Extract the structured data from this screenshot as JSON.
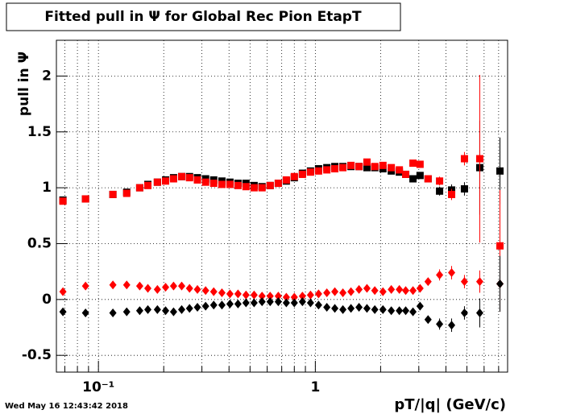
{
  "chart_data": {
    "type": "scatter",
    "title": "Fitted pull in  Ψ  for Global Rec Pion EtapT",
    "y_label": "pull in  Ψ",
    "x_label": "pT/|q| (GeV/c)",
    "footer": "Wed May 16 12:43:42 2018",
    "log_x": true,
    "grid": true,
    "xlim": [
      0.064,
      7.7
    ],
    "ylim": [
      -0.65,
      2.32
    ],
    "xticks": [
      {
        "value": 0.1,
        "label": "10⁻¹"
      },
      1
    ],
    "xminor": [
      0.07,
      0.08,
      0.09,
      0.2,
      0.3,
      0.4,
      0.5,
      0.6,
      0.7,
      0.8,
      0.9,
      2,
      3,
      4,
      5,
      6,
      7
    ],
    "yticks": [
      -0.5,
      0,
      0.5,
      1,
      1.5,
      2
    ],
    "x": [
      0.0686,
      0.0872,
      0.1166,
      0.135,
      0.155,
      0.169,
      0.187,
      0.204,
      0.222,
      0.242,
      0.263,
      0.286,
      0.312,
      0.34,
      0.371,
      0.404,
      0.44,
      0.479,
      0.522,
      0.568,
      0.619,
      0.675,
      0.735,
      0.8,
      0.872,
      0.95,
      1.035,
      1.13,
      1.23,
      1.34,
      1.46,
      1.59,
      1.73,
      1.88,
      2.05,
      2.24,
      2.44,
      2.61,
      2.82,
      3.04,
      3.31,
      3.74,
      4.25,
      4.87,
      5.73,
      7.1
    ],
    "series": [
      {
        "marker": "square",
        "color": "#000000",
        "values": [
          0.89,
          0.9,
          0.94,
          0.96,
          1.0,
          1.03,
          1.05,
          1.07,
          1.09,
          1.1,
          1.1,
          1.09,
          1.08,
          1.07,
          1.06,
          1.05,
          1.04,
          1.04,
          1.02,
          1.01,
          1.02,
          1.04,
          1.06,
          1.09,
          1.13,
          1.15,
          1.17,
          1.18,
          1.19,
          1.19,
          1.19,
          1.19,
          1.18,
          1.18,
          1.17,
          1.15,
          1.14,
          1.12,
          1.08,
          1.11,
          1.08,
          0.97,
          0.98,
          0.99,
          1.18,
          1.15
        ],
        "yerr": [
          0.01,
          0.01,
          0.01,
          0.01,
          0.01,
          0.01,
          0.01,
          0.01,
          0.01,
          0.01,
          0.01,
          0.01,
          0.01,
          0.01,
          0.01,
          0.01,
          0.01,
          0.01,
          0.01,
          0.01,
          0.01,
          0.01,
          0.01,
          0.01,
          0.01,
          0.01,
          0.01,
          0.01,
          0.01,
          0.01,
          0.01,
          0.01,
          0.01,
          0.01,
          0.01,
          0.01,
          0.02,
          0.02,
          0.02,
          0.03,
          0.03,
          0.04,
          0.05,
          0.06,
          0.42,
          0.3
        ]
      },
      {
        "marker": "square",
        "color": "#ff0000",
        "values": [
          0.88,
          0.9,
          0.94,
          0.95,
          1.0,
          1.02,
          1.05,
          1.06,
          1.08,
          1.1,
          1.09,
          1.07,
          1.05,
          1.04,
          1.03,
          1.03,
          1.02,
          1.01,
          1.0,
          1.0,
          1.02,
          1.04,
          1.07,
          1.1,
          1.12,
          1.14,
          1.15,
          1.16,
          1.17,
          1.18,
          1.2,
          1.19,
          1.23,
          1.19,
          1.2,
          1.18,
          1.16,
          1.12,
          1.22,
          1.21,
          1.08,
          1.06,
          0.94,
          1.26,
          1.26,
          0.48
        ],
        "yerr": [
          0.01,
          0.01,
          0.01,
          0.01,
          0.01,
          0.01,
          0.01,
          0.01,
          0.01,
          0.01,
          0.01,
          0.01,
          0.01,
          0.01,
          0.01,
          0.01,
          0.01,
          0.01,
          0.01,
          0.01,
          0.01,
          0.01,
          0.01,
          0.01,
          0.01,
          0.01,
          0.01,
          0.01,
          0.01,
          0.01,
          0.01,
          0.01,
          0.01,
          0.01,
          0.01,
          0.01,
          0.02,
          0.02,
          0.02,
          0.03,
          0.03,
          0.04,
          0.05,
          0.06,
          0.75,
          0.5
        ]
      },
      {
        "marker": "diamond",
        "color": "#ff0000",
        "values": [
          0.07,
          0.12,
          0.13,
          0.13,
          0.12,
          0.1,
          0.09,
          0.11,
          0.12,
          0.12,
          0.1,
          0.09,
          0.08,
          0.07,
          0.06,
          0.05,
          0.05,
          0.04,
          0.04,
          0.03,
          0.03,
          0.03,
          0.02,
          0.02,
          0.03,
          0.04,
          0.05,
          0.06,
          0.07,
          0.06,
          0.07,
          0.09,
          0.1,
          0.08,
          0.07,
          0.09,
          0.09,
          0.08,
          0.08,
          0.1,
          0.16,
          0.22,
          0.24,
          0.16,
          0.16,
          0.14
        ],
        "yerr": [
          0.01,
          0.01,
          0.01,
          0.01,
          0.01,
          0.01,
          0.01,
          0.01,
          0.01,
          0.01,
          0.01,
          0.01,
          0.01,
          0.01,
          0.01,
          0.01,
          0.01,
          0.01,
          0.01,
          0.01,
          0.01,
          0.01,
          0.01,
          0.01,
          0.01,
          0.01,
          0.01,
          0.01,
          0.01,
          0.01,
          0.01,
          0.01,
          0.01,
          0.01,
          0.01,
          0.01,
          0.02,
          0.02,
          0.02,
          0.02,
          0.03,
          0.05,
          0.06,
          0.06,
          0.1,
          0.25
        ]
      },
      {
        "marker": "diamond",
        "color": "#000000",
        "values": [
          -0.11,
          -0.12,
          -0.12,
          -0.11,
          -0.1,
          -0.09,
          -0.09,
          -0.1,
          -0.11,
          -0.09,
          -0.08,
          -0.07,
          -0.06,
          -0.05,
          -0.05,
          -0.04,
          -0.04,
          -0.03,
          -0.03,
          -0.02,
          -0.02,
          -0.02,
          -0.03,
          -0.03,
          -0.02,
          -0.03,
          -0.05,
          -0.07,
          -0.08,
          -0.09,
          -0.08,
          -0.07,
          -0.08,
          -0.09,
          -0.09,
          -0.1,
          -0.1,
          -0.1,
          -0.11,
          -0.06,
          -0.18,
          -0.22,
          -0.23,
          -0.12,
          -0.12,
          0.14
        ],
        "yerr": [
          0.01,
          0.01,
          0.01,
          0.01,
          0.01,
          0.01,
          0.01,
          0.01,
          0.01,
          0.01,
          0.01,
          0.01,
          0.01,
          0.01,
          0.01,
          0.01,
          0.01,
          0.01,
          0.01,
          0.01,
          0.01,
          0.01,
          0.01,
          0.01,
          0.01,
          0.01,
          0.01,
          0.01,
          0.01,
          0.01,
          0.01,
          0.01,
          0.01,
          0.01,
          0.01,
          0.01,
          0.02,
          0.02,
          0.02,
          0.02,
          0.03,
          0.05,
          0.06,
          0.06,
          0.13,
          0.25
        ]
      }
    ]
  }
}
